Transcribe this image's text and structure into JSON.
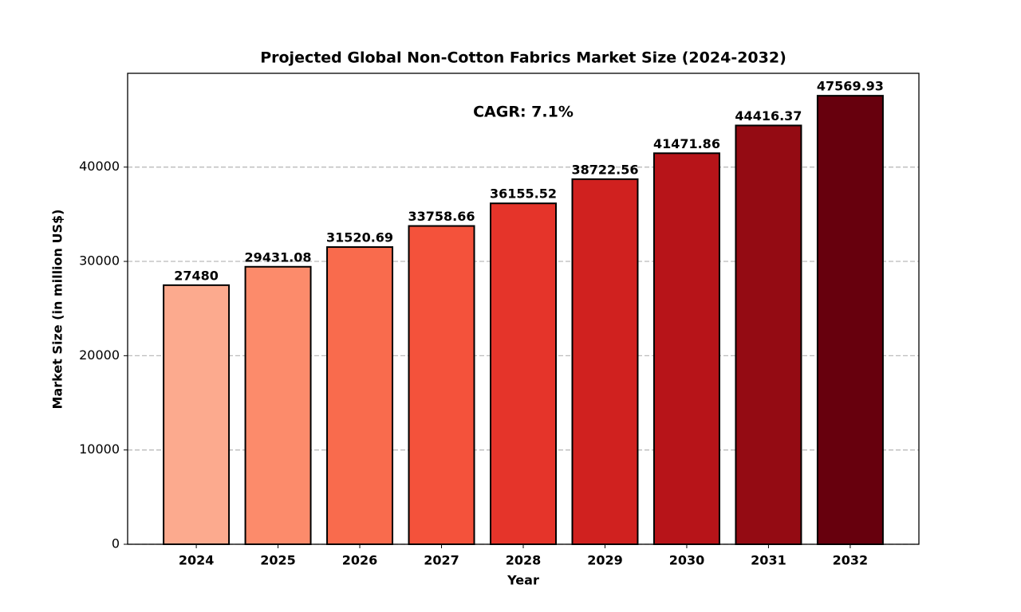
{
  "chart_data": {
    "type": "bar",
    "title": "Projected Global Non-Cotton Fabrics Market Size (2024-2032)",
    "x_label": "Year",
    "y_label": "Market Size (in million US$)",
    "annotation": "CAGR: 7.1%",
    "categories": [
      "2024",
      "2025",
      "2026",
      "2027",
      "2028",
      "2029",
      "2030",
      "2031",
      "2032"
    ],
    "values": [
      27480,
      29431.08,
      31520.69,
      33758.66,
      36155.52,
      38722.56,
      41471.86,
      44416.37,
      47569.93
    ],
    "colors": [
      "#fcaa8e",
      "#fc8b6b",
      "#f96b4d",
      "#f4523b",
      "#e5342a",
      "#d0211f",
      "#b71419",
      "#940b13",
      "#67000d"
    ],
    "ylim": [
      0,
      49948
    ],
    "yticks": [
      0,
      10000,
      20000,
      30000,
      40000
    ],
    "grid": true
  }
}
